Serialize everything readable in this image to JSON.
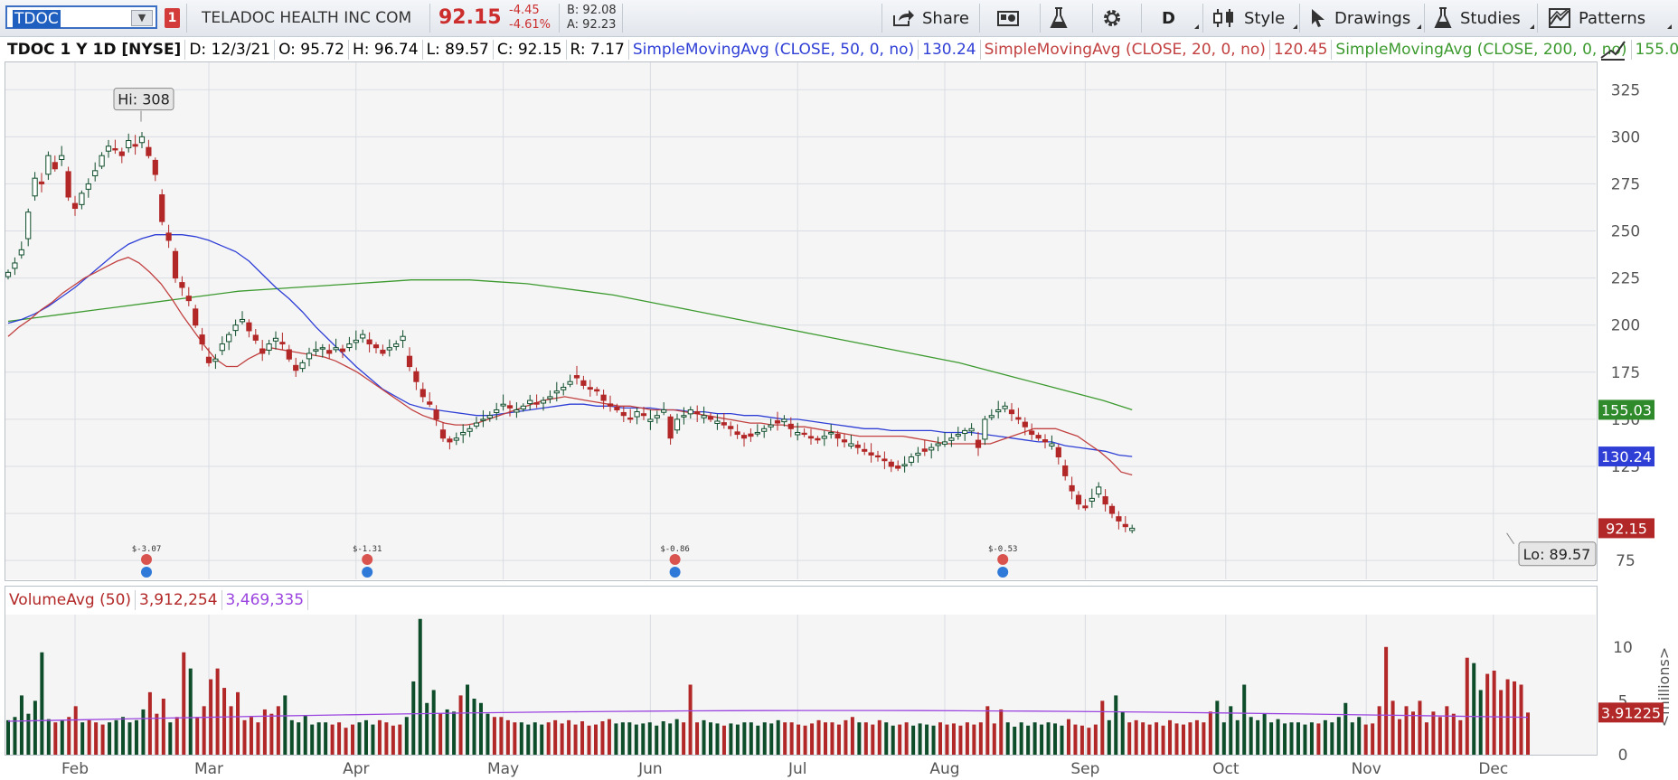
{
  "toolbar": {
    "symbol": "TDOC",
    "link_badge": "1",
    "company": "TELADOC HEALTH INC COM",
    "last": "92.15",
    "change": "-4.45",
    "change_pct": "-4.61%",
    "bid": "B: 92.08",
    "ask": "A: 92.23",
    "share_label": "Share",
    "aggregation_label": "D",
    "style_label": "Style",
    "drawings_label": "Drawings",
    "studies_label": "Studies",
    "patterns_label": "Patterns"
  },
  "infobar": {
    "title": "TDOC 1 Y 1D [NYSE]",
    "date": "D: 12/3/21",
    "open": "O: 95.72",
    "high": "H: 96.74",
    "low": "L: 89.57",
    "close": "C: 92.15",
    "range": "R: 7.17",
    "sma50_label": "SimpleMovingAvg (CLOSE, 50, 0, no)",
    "sma50_value": "130.24",
    "sma20_label": "SimpleMovingAvg (CLOSE, 20, 0, no)",
    "sma20_value": "120.45",
    "sma200_label": "SimpleMovingAvg (CLOSE, 200, 0, no)",
    "sma200_value": "155.03",
    "more": "..."
  },
  "volume_header": {
    "label": "VolumeAvg (50)",
    "volume": "3,912,254",
    "avg": "3,469,335"
  },
  "colors": {
    "up": "#0e4d2a",
    "down": "#b22727",
    "sma50": "#2f3fd6",
    "sma20": "#c24040",
    "sma200": "#3c9a2f",
    "volavg": "#9b45e0",
    "grid": "#d9dde3",
    "plot_bg": "#f5f5f5"
  },
  "chart_data": [
    {
      "type": "candlestick",
      "title": "TDOC 1 Y 1D [NYSE]",
      "x_ticks": [
        "Feb",
        "Mar",
        "Apr",
        "May",
        "Jun",
        "Jul",
        "Aug",
        "Sep",
        "Oct",
        "Nov",
        "Dec"
      ],
      "x_tick_days": [
        10,
        30,
        52,
        74,
        96,
        118,
        140,
        161,
        182,
        203,
        222
      ],
      "ylim": [
        65,
        340
      ],
      "y_ticks": [
        75,
        100,
        125,
        150,
        175,
        200,
        225,
        250,
        275,
        300,
        325
      ],
      "y_tick_labels": [
        "75",
        "",
        "125",
        "150",
        "175",
        "200",
        "225",
        "250",
        "275",
        "300",
        "325"
      ],
      "hi_label": "Hi: 308",
      "hi_value": 308,
      "hi_day": 20,
      "lo_label": "Lo: 89.57",
      "lo_value": 89.57,
      "lo_day": 224,
      "last_close_label": "92.15",
      "sma50_end_label": "130.24",
      "sma200_end_label": "155.03",
      "closes": [
        228,
        233,
        240,
        260,
        278,
        275,
        290,
        283,
        290,
        268,
        262,
        270,
        275,
        282,
        290,
        295,
        293,
        290,
        298,
        295,
        300,
        290,
        280,
        255,
        245,
        225,
        220,
        213,
        200,
        190,
        180,
        182,
        190,
        195,
        200,
        203,
        197,
        192,
        185,
        190,
        193,
        190,
        182,
        176,
        180,
        185,
        187,
        188,
        185,
        188,
        186,
        190,
        192,
        195,
        190,
        188,
        185,
        188,
        190,
        194,
        178,
        170,
        162,
        158,
        150,
        140,
        138,
        140,
        143,
        145,
        148,
        150,
        152,
        155,
        158,
        156,
        155,
        157,
        160,
        158,
        160,
        162,
        165,
        167,
        170,
        172,
        168,
        166,
        165,
        160,
        157,
        155,
        152,
        150,
        154,
        152,
        150,
        152,
        155,
        140,
        150,
        152,
        155,
        153,
        152,
        150,
        149,
        147,
        145,
        142,
        140,
        141,
        143,
        145,
        147,
        148,
        150,
        145,
        143,
        142,
        140,
        139,
        141,
        143,
        140,
        138,
        137,
        135,
        133,
        131,
        130,
        128,
        125,
        124,
        126,
        130,
        132,
        133,
        135,
        137,
        138,
        140,
        142,
        144,
        145,
        135,
        150,
        152,
        155,
        157,
        153,
        150,
        146,
        142,
        140,
        138,
        137,
        130,
        120,
        112,
        105,
        103,
        108,
        114,
        105,
        100,
        96,
        93,
        92.15
      ],
      "sma20": [
        194,
        199,
        203,
        208,
        212,
        217,
        221,
        225,
        228,
        231,
        234,
        236,
        233,
        228,
        222,
        214,
        205,
        197,
        189,
        182,
        178,
        178,
        182,
        185,
        188,
        187,
        186,
        185,
        184,
        183,
        181,
        178,
        175,
        171,
        167,
        163,
        159,
        155,
        152,
        150,
        148,
        147,
        147,
        148,
        150,
        152,
        154,
        156,
        158,
        160,
        161,
        162,
        161,
        160,
        159,
        158,
        157,
        157,
        156,
        155,
        155,
        155,
        154,
        153,
        152,
        151,
        150,
        149,
        148,
        148,
        147,
        147,
        146,
        146,
        145,
        144,
        143,
        142,
        141,
        141,
        141,
        141,
        141,
        140,
        139,
        138,
        137,
        137,
        137,
        137,
        137,
        139,
        141,
        143,
        145,
        145,
        145,
        143,
        141,
        137,
        133,
        128,
        122,
        120.45
      ],
      "sma50": [
        201,
        203,
        206,
        210,
        215,
        220,
        226,
        232,
        238,
        243,
        246,
        248,
        248,
        248,
        247,
        245,
        242,
        239,
        234,
        227,
        220,
        214,
        207,
        199,
        192,
        185,
        178,
        172,
        166,
        162,
        158,
        156,
        155,
        154,
        153,
        152,
        152,
        153,
        154,
        155,
        156,
        157,
        158,
        158,
        157,
        157,
        156,
        156,
        156,
        155,
        155,
        154,
        154,
        153,
        153,
        152,
        152,
        151,
        150,
        150,
        149,
        148,
        147,
        146,
        145,
        145,
        144,
        144,
        144,
        144,
        143,
        143,
        143,
        142,
        141,
        140,
        139,
        138,
        138,
        136,
        135,
        134,
        133,
        131,
        130.24
      ],
      "sma200": [
        202,
        204,
        206,
        208,
        210,
        212,
        214,
        216,
        218,
        219,
        220,
        221,
        222,
        223,
        224,
        224,
        224,
        223,
        222,
        220,
        218,
        216,
        213,
        210,
        207,
        204,
        201,
        198,
        195,
        192,
        189,
        186,
        183,
        180,
        176,
        172,
        168,
        164,
        160,
        155.03
      ]
    },
    {
      "type": "bar",
      "title": "VolumeAvg (50)",
      "ylim": [
        0,
        13
      ],
      "y_ticks": [
        0,
        5,
        10
      ],
      "y_tick_labels": [
        "0",
        "5",
        "10"
      ],
      "ylabel": "<millions>",
      "last_label": "3.91225",
      "volumes": [
        3.2,
        3.5,
        5.5,
        3.8,
        5.0,
        9.5,
        3.3,
        3.0,
        3.2,
        3.5,
        4.5,
        3.0,
        3.2,
        3.0,
        2.8,
        3.0,
        3.2,
        3.5,
        3.0,
        3.2,
        4.2,
        5.8,
        3.8,
        5.2,
        3.0,
        3.5,
        9.5,
        8.0,
        3.5,
        4.5,
        7.0,
        8.0,
        6.2,
        4.5,
        5.8,
        3.2,
        3.5,
        3.0,
        4.2,
        3.8,
        4.5,
        5.5,
        3.2,
        3.0,
        3.6,
        2.8,
        3.0,
        3.0,
        2.8,
        3.0,
        2.5,
        2.8,
        3.0,
        3.2,
        2.8,
        3.2,
        3.0,
        2.7,
        2.8,
        3.5,
        6.8,
        12.6,
        4.8,
        6.0,
        3.8,
        4.2,
        4.0,
        5.5,
        6.5,
        5.2,
        4.8,
        3.8,
        3.5,
        3.5,
        3.2,
        3.0,
        3.0,
        2.8,
        3.0,
        2.8,
        3.0,
        3.2,
        2.9,
        3.2,
        2.8,
        3.1,
        2.7,
        2.8,
        3.1,
        3.3,
        2.9,
        3.0,
        3.0,
        2.8,
        2.9,
        3.0,
        2.7,
        3.1,
        2.9,
        3.3,
        3.0,
        6.5,
        3.0,
        3.2,
        3.0,
        2.9,
        2.7,
        2.9,
        2.8,
        3.0,
        3.0,
        2.7,
        3.0,
        2.9,
        3.2,
        3.0,
        3.0,
        2.8,
        2.7,
        2.9,
        3.2,
        3.0,
        3.0,
        2.8,
        3.2,
        3.5,
        3.0,
        3.0,
        2.8,
        3.2,
        3.0,
        2.7,
        2.8,
        3.0,
        2.7,
        2.9,
        2.8,
        2.7,
        3.0,
        2.8,
        2.9,
        2.7,
        3.0,
        2.8,
        3.0,
        4.5,
        2.9,
        4.2,
        3.0,
        2.6,
        3.0,
        2.7,
        3.0,
        2.8,
        3.0,
        2.9,
        2.7,
        3.3,
        2.8,
        2.7,
        2.5,
        2.8,
        5.0,
        3.2,
        5.5,
        4.0,
        3.0,
        3.2,
        3.0,
        2.8,
        3.0,
        2.7,
        3.2,
        2.9,
        2.8,
        3.0,
        3.2,
        3.0,
        4.0,
        5.0,
        3.0,
        4.5,
        3.2,
        6.5,
        3.5,
        3.2,
        3.8,
        3.0,
        3.3,
        2.9,
        3.0,
        3.0,
        2.8,
        3.0,
        2.9,
        3.2,
        3.0,
        3.5,
        4.8,
        3.0,
        3.5,
        2.8,
        2.9,
        4.5,
        10.0,
        5.0,
        3.3,
        4.5,
        4.0,
        5.0,
        3.0,
        4.0,
        3.5,
        4.5,
        3.8,
        3.2,
        9.0,
        8.5,
        6.0,
        7.5,
        7.8,
        6.0,
        7.0,
        6.8,
        6.5,
        3.91225
      ],
      "avg_start": 3.1,
      "avg_end": 3.469335,
      "avg_peak": 4.0
    }
  ]
}
